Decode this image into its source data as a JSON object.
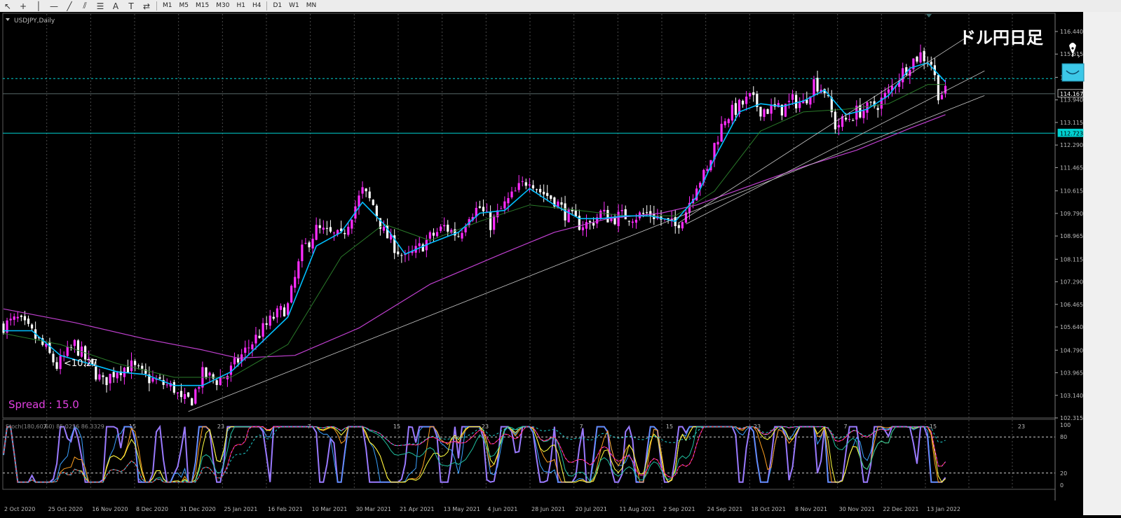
{
  "toolbar": {
    "tools": [
      {
        "name": "cursor-icon",
        "glyph": "↖"
      },
      {
        "name": "crosshair-icon",
        "glyph": "+"
      },
      {
        "name": "vertical-line-icon",
        "glyph": "│"
      },
      {
        "name": "horizontal-line-icon",
        "glyph": "—"
      },
      {
        "name": "trendline-icon",
        "glyph": "╱"
      },
      {
        "name": "fibonacci-channel-icon",
        "glyph": "⫽"
      },
      {
        "name": "fibonacci-retracement-icon",
        "glyph": "☰"
      },
      {
        "name": "text-icon",
        "glyph": "A"
      },
      {
        "name": "text-label-icon",
        "glyph": "T"
      },
      {
        "name": "arrows-icon",
        "glyph": "⇄"
      }
    ],
    "timeframes": [
      "M1",
      "M5",
      "M15",
      "M30",
      "H1",
      "H4",
      "D1",
      "W1",
      "MN"
    ]
  },
  "chart_data": [
    {
      "type": "candlestick",
      "symbol_label": "USDJPY,Daily",
      "annotation_title": "ドル円日足",
      "spread_label": "Spread : 15.0",
      "cursor_label": "<10.27",
      "y_ticks": [
        "116.440",
        "115.615",
        "114.765",
        "113.940",
        "113.115",
        "112.290",
        "111.465",
        "110.615",
        "109.790",
        "108.965",
        "108.115",
        "107.290",
        "106.465",
        "105.640",
        "104.790",
        "103.965",
        "103.140",
        "102.315"
      ],
      "ylim": [
        102.315,
        116.44
      ],
      "price_tags": [
        {
          "label": "114.167",
          "bg": "#000000",
          "fg": "#ffffff",
          "border": "#ffffff"
        },
        {
          "label": "112.723",
          "bg": "#00d0d0",
          "fg": "#000000",
          "border": "#00d0d0"
        }
      ],
      "horizontal_levels": [
        {
          "value": 114.72,
          "style": "dashed",
          "color": "#00d0d0"
        },
        {
          "value": 114.167,
          "style": "solid",
          "color": "#5a6a6a"
        },
        {
          "value": 112.723,
          "style": "solid",
          "color": "#00d0d0"
        }
      ],
      "inner_x_ticks": [
        "7",
        "15",
        "23",
        "7",
        "15",
        "23",
        "7",
        "15",
        "23",
        "7",
        "15",
        "23"
      ],
      "date_labels": [
        "2 Oct 2020",
        "25 Oct 2020",
        "16 Nov 2020",
        "8 Dec 2020",
        "31 Dec 2020",
        "25 Jan 2021",
        "16 Feb 2021",
        "10 Mar 2021",
        "30 Mar 2021",
        "21 Apr 2021",
        "13 May 2021",
        "4 Jun 2021",
        "28 Jun 2021",
        "20 Jul 2021",
        "11 Aug 2021",
        "2 Sep 2021",
        "24 Sep 2021",
        "18 Oct 2021",
        "8 Nov 2021",
        "30 Nov 2021",
        "22 Dec 2021",
        "13 Jan 2022"
      ],
      "series": [
        {
          "name": "",
          "color": "#00bfff",
          "role": "fast MA"
        },
        {
          "name": "",
          "color": "#2a7a2a",
          "role": "medium MA"
        },
        {
          "name": "",
          "color": "#c040d0",
          "role": "slow MA"
        }
      ],
      "close_path": [
        [
          0,
          105.7
        ],
        [
          4,
          105.9
        ],
        [
          8,
          105.4
        ],
        [
          12,
          104.8
        ],
        [
          15,
          104.2
        ],
        [
          20,
          105.0
        ],
        [
          24,
          104.3
        ],
        [
          28,
          103.6
        ],
        [
          32,
          104.1
        ],
        [
          36,
          104.2
        ],
        [
          40,
          103.8
        ],
        [
          44,
          103.6
        ],
        [
          48,
          103.4
        ],
        [
          50,
          102.9
        ],
        [
          53,
          103.0
        ],
        [
          56,
          103.9
        ],
        [
          60,
          103.7
        ],
        [
          63,
          103.9
        ],
        [
          67,
          104.6
        ],
        [
          72,
          105.4
        ],
        [
          76,
          106.0
        ],
        [
          80,
          106.4
        ],
        [
          84,
          108.4
        ],
        [
          88,
          109.2
        ],
        [
          92,
          109.0
        ],
        [
          95,
          108.9
        ],
        [
          98,
          109.8
        ],
        [
          101,
          110.6
        ],
        [
          104,
          110.1
        ],
        [
          107,
          109.1
        ],
        [
          110,
          108.6
        ],
        [
          113,
          108.1
        ],
        [
          116,
          108.4
        ],
        [
          120,
          108.9
        ],
        [
          124,
          109.3
        ],
        [
          128,
          109.0
        ],
        [
          131,
          109.8
        ],
        [
          134,
          110.0
        ],
        [
          137,
          109.4
        ],
        [
          141,
          110.1
        ],
        [
          145,
          110.7
        ],
        [
          148,
          111.1
        ],
        [
          151,
          110.6
        ],
        [
          155,
          110.3
        ],
        [
          158,
          109.8
        ],
        [
          162,
          109.4
        ],
        [
          165,
          109.4
        ],
        [
          168,
          109.8
        ],
        [
          171,
          109.6
        ],
        [
          174,
          109.7
        ],
        [
          178,
          109.7
        ],
        [
          182,
          109.8
        ],
        [
          186,
          109.5
        ],
        [
          189,
          109.3
        ],
        [
          192,
          109.9
        ],
        [
          195,
          110.9
        ],
        [
          198,
          111.3
        ],
        [
          200,
          112.3
        ],
        [
          203,
          113.3
        ],
        [
          207,
          113.7
        ],
        [
          210,
          114.0
        ],
        [
          213,
          113.6
        ],
        [
          216,
          113.6
        ],
        [
          219,
          113.6
        ],
        [
          222,
          113.9
        ],
        [
          225,
          113.8
        ],
        [
          228,
          114.6
        ],
        [
          231,
          114.3
        ],
        [
          234,
          113.0
        ],
        [
          237,
          113.2
        ],
        [
          240,
          113.5
        ],
        [
          243,
          113.6
        ],
        [
          246,
          113.8
        ],
        [
          249,
          114.2
        ],
        [
          252,
          114.8
        ],
        [
          255,
          115.3
        ],
        [
          258,
          115.6
        ],
        [
          261,
          115.3
        ],
        [
          263,
          114.2
        ],
        [
          265,
          114.2
        ]
      ],
      "fast_ma_path": [
        [
          0,
          105.5
        ],
        [
          8,
          105.5
        ],
        [
          16,
          104.6
        ],
        [
          24,
          104.3
        ],
        [
          32,
          104.0
        ],
        [
          40,
          103.9
        ],
        [
          48,
          103.5
        ],
        [
          56,
          103.5
        ],
        [
          64,
          104.0
        ],
        [
          72,
          105.0
        ],
        [
          80,
          106.0
        ],
        [
          88,
          108.6
        ],
        [
          95,
          109.1
        ],
        [
          101,
          110.2
        ],
        [
          107,
          109.4
        ],
        [
          113,
          108.3
        ],
        [
          120,
          108.7
        ],
        [
          128,
          109.1
        ],
        [
          134,
          109.8
        ],
        [
          141,
          109.9
        ],
        [
          148,
          110.7
        ],
        [
          155,
          110.1
        ],
        [
          162,
          109.6
        ],
        [
          168,
          109.6
        ],
        [
          175,
          109.7
        ],
        [
          182,
          109.7
        ],
        [
          189,
          109.5
        ],
        [
          195,
          110.4
        ],
        [
          200,
          111.8
        ],
        [
          207,
          113.5
        ],
        [
          213,
          113.8
        ],
        [
          219,
          113.7
        ],
        [
          225,
          113.9
        ],
        [
          231,
          114.3
        ],
        [
          237,
          113.4
        ],
        [
          243,
          113.6
        ],
        [
          249,
          114.1
        ],
        [
          255,
          115.1
        ],
        [
          260,
          115.3
        ],
        [
          265,
          114.6
        ]
      ],
      "medium_ma_path": [
        [
          0,
          105.4
        ],
        [
          16,
          105.0
        ],
        [
          32,
          104.3
        ],
        [
          48,
          103.8
        ],
        [
          64,
          103.8
        ],
        [
          80,
          105.0
        ],
        [
          95,
          108.2
        ],
        [
          107,
          109.4
        ],
        [
          120,
          108.8
        ],
        [
          134,
          109.5
        ],
        [
          148,
          110.1
        ],
        [
          162,
          109.9
        ],
        [
          175,
          109.7
        ],
        [
          189,
          109.7
        ],
        [
          200,
          110.6
        ],
        [
          213,
          112.8
        ],
        [
          225,
          113.5
        ],
        [
          237,
          113.6
        ],
        [
          249,
          113.8
        ],
        [
          260,
          114.5
        ],
        [
          265,
          114.5
        ]
      ],
      "slow_ma_path": [
        [
          0,
          106.3
        ],
        [
          20,
          105.8
        ],
        [
          40,
          105.2
        ],
        [
          56,
          104.8
        ],
        [
          66,
          104.5
        ],
        [
          82,
          104.6
        ],
        [
          100,
          105.6
        ],
        [
          120,
          107.2
        ],
        [
          140,
          108.3
        ],
        [
          155,
          109.1
        ],
        [
          170,
          109.6
        ],
        [
          185,
          109.8
        ],
        [
          195,
          110.1
        ],
        [
          210,
          110.8
        ],
        [
          225,
          111.5
        ],
        [
          240,
          112.1
        ],
        [
          255,
          112.9
        ],
        [
          265,
          113.4
        ]
      ],
      "trendlines": [
        {
          "from": [
            52,
            102.55
          ],
          "to": [
            276,
            114.1
          ]
        },
        {
          "from": [
            190,
            109.45
          ],
          "to": [
            273,
            116.4
          ]
        },
        {
          "from": [
            192,
            109.4
          ],
          "to": [
            276,
            115.0
          ]
        }
      ]
    },
    {
      "type": "line",
      "label": "Stoch(180,60,60) 85.0256 86.3329",
      "y_ticks": [
        "100",
        "80",
        "20",
        "0"
      ],
      "ylim": [
        0,
        100
      ],
      "levels": [
        80,
        20
      ],
      "series": [
        {
          "name": "",
          "color": "#9a7aff",
          "period": 5
        },
        {
          "name": "",
          "color": "#3aa0ff",
          "period": 9
        },
        {
          "name": "",
          "color": "#ffa020",
          "period": 14
        },
        {
          "name": "",
          "color": "#ffff40",
          "period": 20
        },
        {
          "name": "",
          "color": "#20c0a0",
          "period": 40
        },
        {
          "name": "",
          "color": "#ff3030",
          "period": 60
        },
        {
          "name": "",
          "color": "#ff40ff",
          "period": 60,
          "dashed": true
        },
        {
          "name": "",
          "color": "#20d0d0",
          "period": 120,
          "dashed": true
        }
      ]
    }
  ]
}
